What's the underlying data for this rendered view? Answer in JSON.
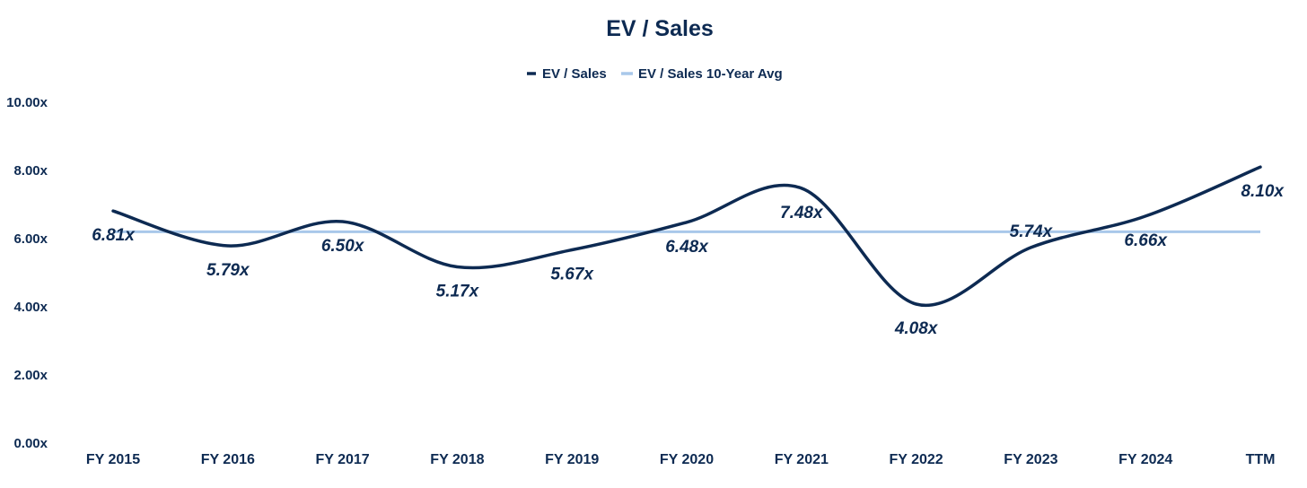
{
  "chart_data": {
    "type": "line",
    "title": "EV / Sales",
    "categories": [
      "FY 2015",
      "FY 2016",
      "FY 2017",
      "FY 2018",
      "FY 2019",
      "FY 2020",
      "FY 2021",
      "FY 2022",
      "FY 2023",
      "FY 2024",
      "TTM"
    ],
    "series": [
      {
        "name": "EV / Sales",
        "values": [
          6.81,
          5.79,
          6.5,
          5.17,
          5.67,
          6.48,
          7.48,
          4.08,
          5.74,
          6.66,
          8.1
        ],
        "labels": [
          "6.81x",
          "5.79x",
          "6.50x",
          "5.17x",
          "5.67x",
          "6.48x",
          "7.48x",
          "4.08x",
          "5.74x",
          "6.66x",
          "8.10x"
        ],
        "color": "#0d2a52"
      },
      {
        "name": "EV / Sales 10-Year Avg",
        "value": 6.2,
        "color": "#a9c8ea"
      }
    ],
    "ylim": [
      0,
      10
    ],
    "yticks": [
      "0.00x",
      "2.00x",
      "4.00x",
      "6.00x",
      "8.00x",
      "10.00x"
    ],
    "xlabel": "",
    "ylabel": "",
    "legend": "top-center",
    "grid": false,
    "colors": {
      "text": "#0d2a52"
    }
  }
}
